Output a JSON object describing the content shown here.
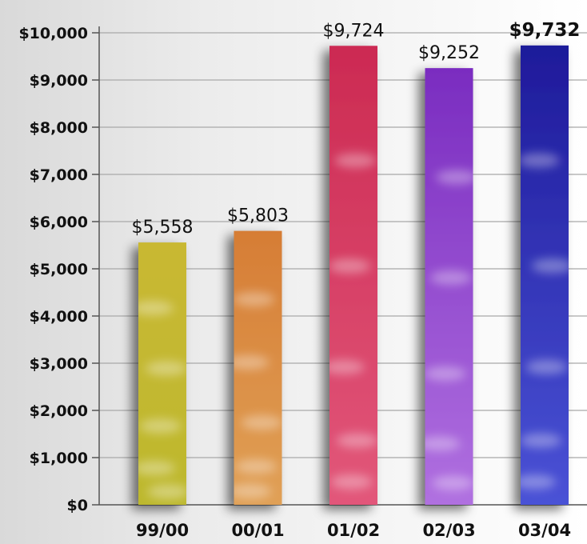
{
  "chart_data": {
    "type": "bar",
    "title": "",
    "xlabel": "",
    "ylabel": "",
    "categories": [
      "99/00",
      "00/01",
      "01/02",
      "02/03",
      "03/04"
    ],
    "values": [
      5558,
      5803,
      9724,
      9252,
      9732
    ],
    "data_labels": [
      "$5,558",
      "$5,803",
      "$9,724",
      "$9,252",
      "$9,732"
    ],
    "ylim": [
      0,
      10000
    ],
    "y_ticks": [
      0,
      1000,
      2000,
      3000,
      4000,
      5000,
      6000,
      7000,
      8000,
      9000,
      10000
    ],
    "y_tick_labels": [
      "$0",
      "$1,000",
      "$2,000",
      "$3,000",
      "$4,000",
      "$5,000",
      "$6,000",
      "$7,000",
      "$8,000",
      "$9,000",
      "$10,000"
    ],
    "grid": true,
    "legend": "none",
    "bar_colors": [
      {
        "top": "#c9b832",
        "bottom": "#bdb82e"
      },
      {
        "top": "#d67d35",
        "bottom": "#e0a056"
      },
      {
        "top": "#cc2a52",
        "bottom": "#e2577a"
      },
      {
        "top": "#7a2cc0",
        "bottom": "#b070e0"
      },
      {
        "top": "#1e1a9a",
        "bottom": "#4a52d6"
      }
    ],
    "emphasized_label_index": 4
  }
}
